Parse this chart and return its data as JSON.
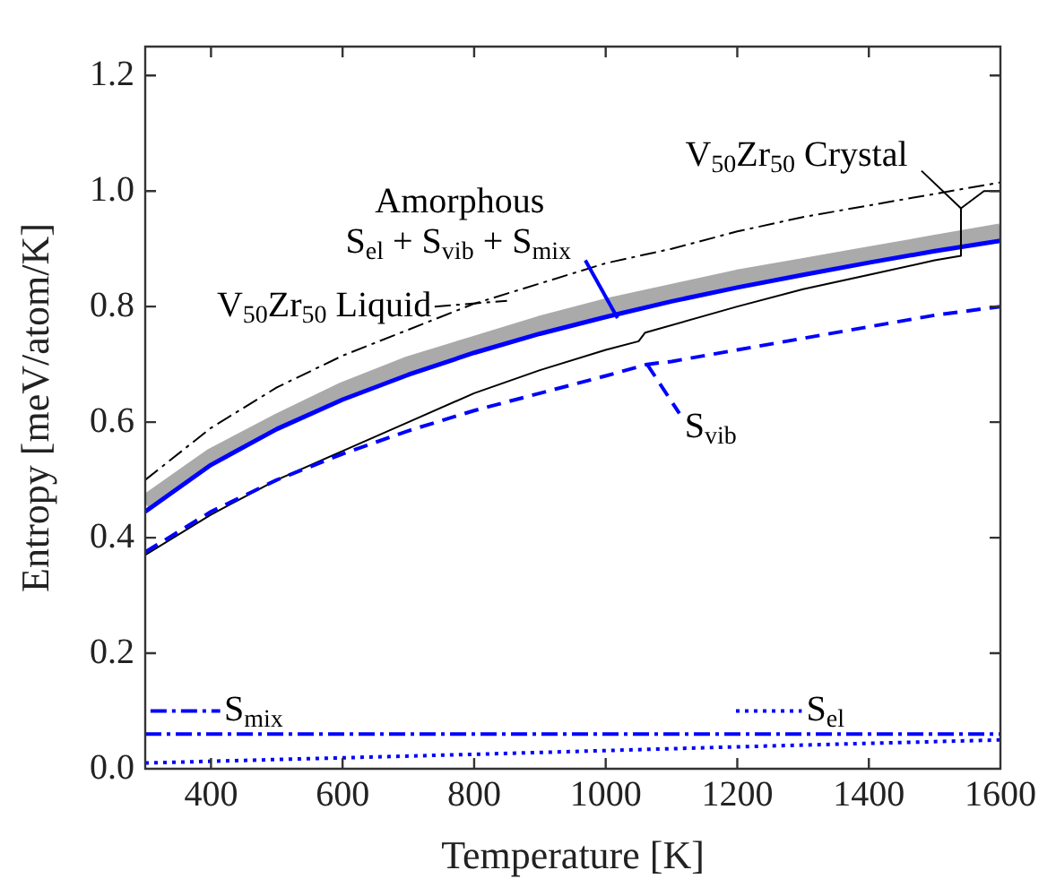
{
  "chart_data": {
    "type": "line",
    "xlabel": "Temperature [K]",
    "ylabel": "Entropy [meV/atom/K]",
    "xlim": [
      300,
      1600
    ],
    "xticks": [
      400,
      600,
      800,
      1000,
      1200,
      1400,
      1600
    ],
    "ylim": [
      0,
      1.25
    ],
    "yticks": [
      {
        "value": 0,
        "label": "0.0"
      },
      {
        "value": 0.2,
        "label": "0.2"
      },
      {
        "value": 0.4,
        "label": "0.4"
      },
      {
        "value": 0.6,
        "label": "0.6"
      },
      {
        "value": 0.8,
        "label": "0.8"
      },
      {
        "value": 1,
        "label": "1.0"
      },
      {
        "value": 1.2,
        "label": "1.2"
      }
    ],
    "grid": false,
    "legend": "bottom",
    "marker": "none",
    "annotations": [
      "Amorphous",
      {
        "text": "S$_{el}$ + S$_{vib}$ + S$_{mix}$",
        "x": 1018,
        "y": 0.78
      }
    ],
    "series": [
      {
        "name": "V$_{50}$Zr$_{50}$ Liquid",
        "color": "#000000",
        "line_style": "dashdot",
        "x": [
          300,
          400,
          500,
          600,
          700,
          800,
          900,
          1000,
          1100,
          1200,
          1300,
          1400,
          1500,
          1600
        ],
        "values": [
          0.5,
          0.59,
          0.66,
          0.715,
          0.76,
          0.805,
          0.84,
          0.875,
          0.9,
          0.93,
          0.955,
          0.975,
          0.995,
          1.015
        ]
      },
      {
        "color": "#aaaaaa",
        "line_style": "solid",
        "x": [
          300,
          400,
          500,
          600,
          700,
          800,
          900,
          1000,
          1100,
          1200,
          1300,
          1400,
          1500,
          1600
        ],
        "values": [
          0.46,
          0.54,
          0.6,
          0.655,
          0.7,
          0.735,
          0.77,
          0.8,
          0.825,
          0.85,
          0.87,
          0.89,
          0.91,
          0.93
        ]
      },
      {
        "color": "#0000ff",
        "line_style": "solid",
        "x": [
          300,
          400,
          500,
          600,
          700,
          800,
          900,
          1000,
          1100,
          1200,
          1300,
          1400,
          1500,
          1600
        ],
        "values": [
          0.445,
          0.526,
          0.588,
          0.639,
          0.682,
          0.72,
          0.753,
          0.782,
          0.809,
          0.833,
          0.855,
          0.876,
          0.896,
          0.914
        ]
      },
      {
        "name": "V$_{50}$Zr$_{50}$ Crystal",
        "color": "#000000",
        "line_style": "solid",
        "x": [
          300,
          400,
          500,
          600,
          700,
          800,
          900,
          1000,
          1050,
          1060,
          1200,
          1300,
          1400,
          1500,
          1540,
          1540,
          1575,
          1600
        ],
        "values": [
          0.37,
          0.44,
          0.5,
          0.55,
          0.6,
          0.65,
          0.69,
          0.725,
          0.74,
          0.755,
          0.8,
          0.83,
          0.855,
          0.88,
          0.888,
          0.97,
          1.0,
          1.0
        ]
      },
      {
        "name": "S$_{vib}$",
        "color": "#0000ff",
        "line_style": "dashed",
        "x": [
          300,
          400,
          500,
          600,
          700,
          800,
          900,
          1000,
          1063,
          1100,
          1200,
          1300,
          1400,
          1500,
          1600
        ],
        "values": [
          0.375,
          0.445,
          0.5,
          0.545,
          0.585,
          0.62,
          0.65,
          0.68,
          0.7,
          0.705,
          0.725,
          0.745,
          0.765,
          0.785,
          0.8
        ]
      },
      {
        "name": "S$_{mix}$",
        "color": "#0000ff",
        "line_style": "dashdot",
        "x": [
          300,
          1600
        ],
        "values": [
          0.06,
          0.06
        ]
      },
      {
        "name": "S$_{el}$",
        "color": "#0000ff",
        "line_style": "dotted",
        "x": [
          300,
          800,
          1200,
          1600
        ],
        "values": [
          0.01,
          0.025,
          0.038,
          0.05
        ]
      }
    ]
  }
}
